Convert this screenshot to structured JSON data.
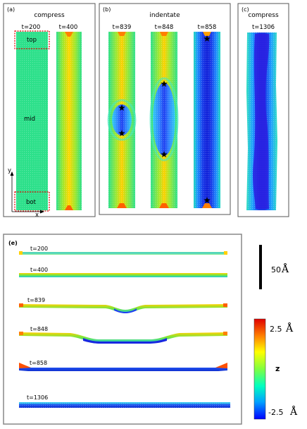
{
  "panel_a": {
    "letter": "(a)",
    "title": "compress",
    "times": [
      "t=200",
      "t=400"
    ],
    "region_labels": {
      "top": "top",
      "mid": "mid",
      "bot": "bot"
    },
    "axis_labels": {
      "y": "y",
      "x": "x"
    }
  },
  "panel_b": {
    "letter": "(b)",
    "title": "indentate",
    "times": [
      "t=839",
      "t=848",
      "t=858"
    ]
  },
  "panel_c": {
    "letter": "(c)",
    "title": "compress",
    "times": [
      "t=1306"
    ]
  },
  "panel_e": {
    "letter": "(e)",
    "times": [
      "t=200",
      "t=400",
      "t=839",
      "t=848",
      "t=858",
      "t=1306"
    ],
    "scale_bar_label": "50",
    "scale_bar_unit": "Å",
    "colorbar": {
      "max_label": "2.5",
      "min_label": "-2.5",
      "unit": "Å",
      "quantity": "z",
      "colors": [
        "#e00000",
        "#ff8000",
        "#ffff00",
        "#80ff40",
        "#00ffc0",
        "#00a0ff",
        "#0000ff"
      ]
    }
  },
  "colors": {
    "green": "#2ce08a",
    "yellow": "#ffe000",
    "orange": "#ff8c00",
    "red": "#e03000",
    "cyan": "#00c8f0",
    "blue": "#1838e8",
    "dark_blue": "#1010c0",
    "frame": "#555555",
    "dashed_box": "#e00000"
  }
}
